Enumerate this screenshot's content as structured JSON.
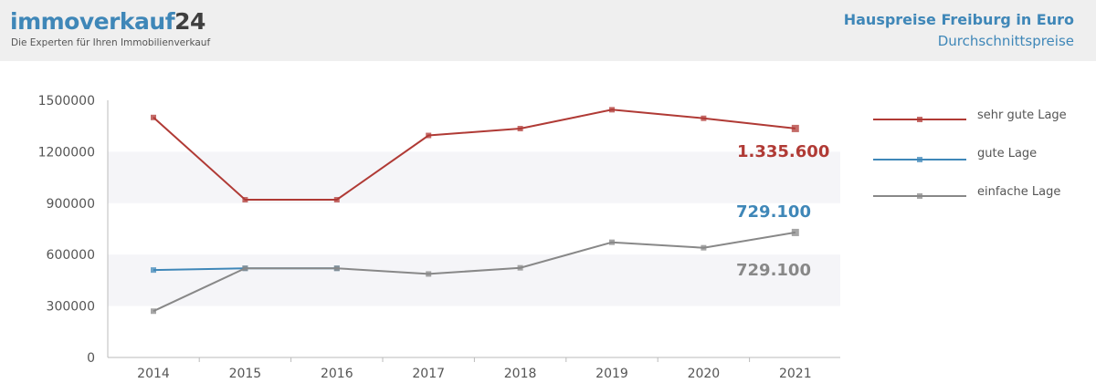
{
  "header": {
    "logo_main": "immoverkauf",
    "logo_accent": "24",
    "tagline": "Die Experten für Ihren Immobilienverkauf"
  },
  "chart_data": {
    "type": "line",
    "title": "Hauspreise Freiburg in Euro",
    "subtitle": "Durchschnittspreise",
    "xlabel": "",
    "ylabel": "",
    "x": [
      "2014",
      "2015",
      "2016",
      "2017",
      "2018",
      "2019",
      "2020",
      "2021"
    ],
    "ylim": [
      0,
      1500000
    ],
    "yticks": [
      0,
      300000,
      600000,
      900000,
      1200000,
      1500000
    ],
    "ytick_labels": [
      "0",
      "300000",
      "600000",
      "900000",
      "1200000",
      "1500000"
    ],
    "legend_position": "right",
    "series": [
      {
        "name": "sehr gute Lage",
        "color": "#b03a35",
        "values": [
          1400000,
          920000,
          920000,
          1295000,
          1335000,
          1445000,
          1395000,
          1335600
        ],
        "end_label": "1.335.600"
      },
      {
        "name": "gute Lage",
        "color": "#3f87b8",
        "values": [
          510000,
          520000,
          520000,
          null,
          null,
          null,
          null,
          null
        ],
        "end_label": "729.100"
      },
      {
        "name": "einfache Lage",
        "color": "#888888",
        "values": [
          270000,
          520000,
          520000,
          487000,
          523000,
          672000,
          640000,
          729100
        ],
        "end_label": "729.100"
      }
    ]
  }
}
